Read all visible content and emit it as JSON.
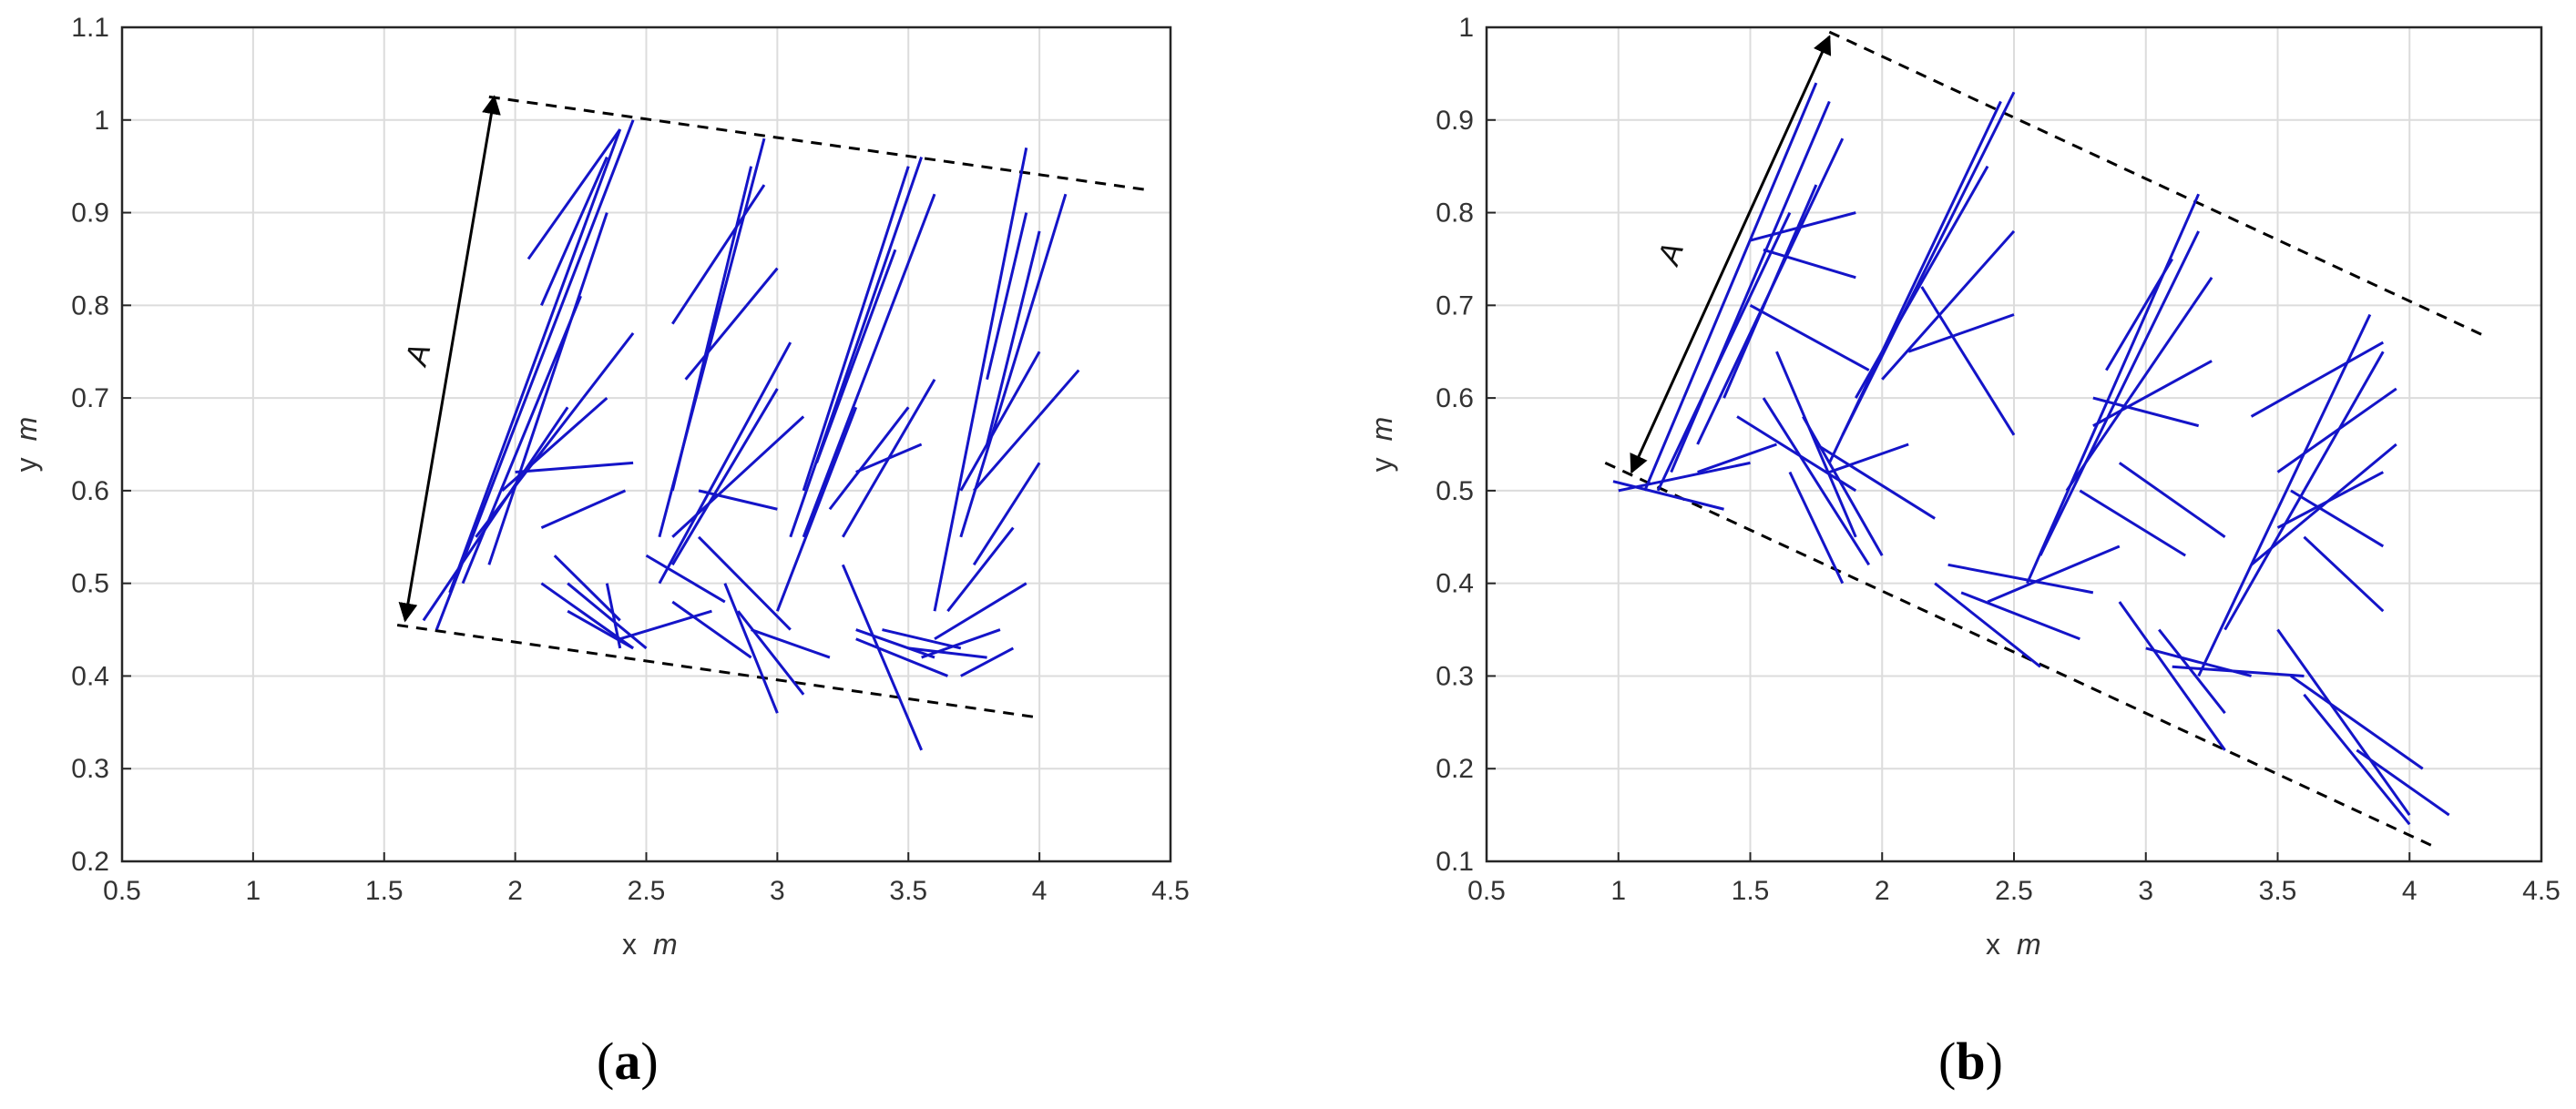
{
  "chart_data": [
    {
      "type": "line",
      "caption_letter": "a",
      "xlabel": "x",
      "xlabel_unit": "m",
      "ylabel": "y",
      "ylabel_unit": "m",
      "xlim": [
        0.5,
        4.5
      ],
      "ylim": [
        0.2,
        1.1
      ],
      "xticks": [
        "0.5",
        "1",
        "1.5",
        "2",
        "2.5",
        "3",
        "3.5",
        "4",
        "4.5"
      ],
      "yticks": [
        "0.2",
        "0.3",
        "0.4",
        "0.5",
        "0.6",
        "0.7",
        "0.8",
        "0.9",
        "1",
        "1.1"
      ],
      "grid": true,
      "annotation": "A",
      "boundary_lines": [
        [
          [
            1.9,
            1.025
          ],
          [
            4.4,
            0.925
          ]
        ],
        [
          [
            1.55,
            0.455
          ],
          [
            4.0,
            0.355
          ]
        ]
      ],
      "arrow": [
        [
          1.58,
          0.46
        ],
        [
          1.92,
          1.025
        ]
      ],
      "segment_color": "#1414c8",
      "segments": [
        [
          [
            1.7,
            0.45
          ],
          [
            2.45,
            1.0
          ]
        ],
        [
          [
            1.75,
            0.49
          ],
          [
            2.4,
            0.99
          ]
        ],
        [
          [
            1.9,
            0.52
          ],
          [
            2.35,
            0.9
          ]
        ],
        [
          [
            1.8,
            0.5
          ],
          [
            2.25,
            0.81
          ]
        ],
        [
          [
            1.85,
            0.55
          ],
          [
            2.45,
            0.77
          ]
        ],
        [
          [
            1.95,
            0.6
          ],
          [
            2.35,
            0.7
          ]
        ],
        [
          [
            2.0,
            0.62
          ],
          [
            2.45,
            0.63
          ]
        ],
        [
          [
            2.1,
            0.56
          ],
          [
            2.42,
            0.6
          ]
        ],
        [
          [
            2.05,
            0.85
          ],
          [
            2.4,
            0.99
          ]
        ],
        [
          [
            2.1,
            0.8
          ],
          [
            2.35,
            0.96
          ]
        ],
        [
          [
            1.65,
            0.46
          ],
          [
            2.2,
            0.69
          ]
        ],
        [
          [
            2.1,
            0.5
          ],
          [
            2.45,
            0.43
          ]
        ],
        [
          [
            2.2,
            0.5
          ],
          [
            2.5,
            0.43
          ]
        ],
        [
          [
            2.2,
            0.47
          ],
          [
            2.45,
            0.43
          ]
        ],
        [
          [
            2.35,
            0.5
          ],
          [
            2.4,
            0.43
          ]
        ],
        [
          [
            2.15,
            0.53
          ],
          [
            2.4,
            0.46
          ]
        ],
        [
          [
            2.55,
            0.55
          ],
          [
            2.95,
            0.98
          ]
        ],
        [
          [
            2.6,
            0.6
          ],
          [
            2.9,
            0.95
          ]
        ],
        [
          [
            2.55,
            0.5
          ],
          [
            3.05,
            0.76
          ]
        ],
        [
          [
            2.6,
            0.52
          ],
          [
            3.0,
            0.71
          ]
        ],
        [
          [
            2.6,
            0.55
          ],
          [
            3.1,
            0.68
          ]
        ],
        [
          [
            2.7,
            0.6
          ],
          [
            3.0,
            0.58
          ]
        ],
        [
          [
            2.6,
            0.78
          ],
          [
            2.95,
            0.93
          ]
        ],
        [
          [
            2.65,
            0.72
          ],
          [
            3.0,
            0.84
          ]
        ],
        [
          [
            2.7,
            0.55
          ],
          [
            3.05,
            0.45
          ]
        ],
        [
          [
            2.6,
            0.48
          ],
          [
            2.9,
            0.42
          ]
        ],
        [
          [
            2.4,
            0.44
          ],
          [
            2.75,
            0.47
          ]
        ],
        [
          [
            2.5,
            0.53
          ],
          [
            2.8,
            0.48
          ]
        ],
        [
          [
            2.8,
            0.5
          ],
          [
            3.0,
            0.36
          ]
        ],
        [
          [
            2.85,
            0.47
          ],
          [
            3.1,
            0.38
          ]
        ],
        [
          [
            2.9,
            0.45
          ],
          [
            3.2,
            0.42
          ]
        ],
        [
          [
            3.05,
            0.55
          ],
          [
            3.55,
            0.96
          ]
        ],
        [
          [
            3.1,
            0.6
          ],
          [
            3.5,
            0.95
          ]
        ],
        [
          [
            3.1,
            0.55
          ],
          [
            3.6,
            0.92
          ]
        ],
        [
          [
            3.15,
            0.63
          ],
          [
            3.45,
            0.86
          ]
        ],
        [
          [
            3.2,
            0.58
          ],
          [
            3.5,
            0.69
          ]
        ],
        [
          [
            3.25,
            0.55
          ],
          [
            3.6,
            0.72
          ]
        ],
        [
          [
            3.3,
            0.62
          ],
          [
            3.55,
            0.65
          ]
        ],
        [
          [
            3.0,
            0.47
          ],
          [
            3.3,
            0.69
          ]
        ],
        [
          [
            3.3,
            0.45
          ],
          [
            3.6,
            0.42
          ]
        ],
        [
          [
            3.25,
            0.52
          ],
          [
            3.55,
            0.32
          ]
        ],
        [
          [
            3.4,
            0.45
          ],
          [
            3.7,
            0.43
          ]
        ],
        [
          [
            3.3,
            0.44
          ],
          [
            3.65,
            0.4
          ]
        ],
        [
          [
            3.5,
            0.43
          ],
          [
            3.8,
            0.42
          ]
        ],
        [
          [
            3.6,
            0.47
          ],
          [
            3.95,
            0.97
          ]
        ],
        [
          [
            3.7,
            0.55
          ],
          [
            4.1,
            0.92
          ]
        ],
        [
          [
            3.75,
            0.6
          ],
          [
            4.15,
            0.73
          ]
        ],
        [
          [
            3.7,
            0.6
          ],
          [
            4.0,
            0.75
          ]
        ],
        [
          [
            3.8,
            0.65
          ],
          [
            4.0,
            0.88
          ]
        ],
        [
          [
            3.6,
            0.44
          ],
          [
            3.95,
            0.5
          ]
        ],
        [
          [
            3.7,
            0.4
          ],
          [
            3.9,
            0.43
          ]
        ],
        [
          [
            3.65,
            0.47
          ],
          [
            3.9,
            0.56
          ]
        ],
        [
          [
            3.75,
            0.52
          ],
          [
            4.0,
            0.63
          ]
        ],
        [
          [
            3.55,
            0.42
          ],
          [
            3.85,
            0.45
          ]
        ],
        [
          [
            3.8,
            0.72
          ],
          [
            3.95,
            0.9
          ]
        ]
      ]
    },
    {
      "type": "line",
      "caption_letter": "b",
      "xlabel": "x",
      "xlabel_unit": "m",
      "ylabel": "y",
      "ylabel_unit": "m",
      "xlim": [
        0.5,
        4.5
      ],
      "ylim": [
        0.1,
        1.0
      ],
      "xticks": [
        "0.5",
        "1",
        "1.5",
        "2",
        "2.5",
        "3",
        "3.5",
        "4",
        "4.5"
      ],
      "yticks": [
        "0.1",
        "0.2",
        "0.3",
        "0.4",
        "0.5",
        "0.6",
        "0.7",
        "0.8",
        "0.9",
        "1"
      ],
      "grid": true,
      "annotation": "A",
      "boundary_lines": [
        [
          [
            1.8,
            0.995
          ],
          [
            4.3,
            0.665
          ]
        ],
        [
          [
            0.95,
            0.53
          ],
          [
            4.1,
            0.115
          ]
        ]
      ],
      "arrow": [
        [
          1.05,
          0.52
        ],
        [
          1.8,
          0.99
        ]
      ],
      "segment_color": "#1414c8",
      "segments": [
        [
          [
            1.1,
            0.5
          ],
          [
            1.75,
            0.94
          ]
        ],
        [
          [
            1.2,
            0.52
          ],
          [
            1.8,
            0.92
          ]
        ],
        [
          [
            1.3,
            0.55
          ],
          [
            1.85,
            0.88
          ]
        ],
        [
          [
            1.15,
            0.5
          ],
          [
            1.65,
            0.8
          ]
        ],
        [
          [
            1.4,
            0.6
          ],
          [
            1.75,
            0.83
          ]
        ],
        [
          [
            1.5,
            0.77
          ],
          [
            1.9,
            0.8
          ]
        ],
        [
          [
            1.55,
            0.76
          ],
          [
            1.9,
            0.73
          ]
        ],
        [
          [
            1.5,
            0.7
          ],
          [
            1.95,
            0.63
          ]
        ],
        [
          [
            1.6,
            0.65
          ],
          [
            1.9,
            0.45
          ]
        ],
        [
          [
            1.55,
            0.6
          ],
          [
            1.95,
            0.42
          ]
        ],
        [
          [
            1.45,
            0.58
          ],
          [
            1.9,
            0.5
          ]
        ],
        [
          [
            0.98,
            0.51
          ],
          [
            1.4,
            0.48
          ]
        ],
        [
          [
            1.0,
            0.5
          ],
          [
            1.5,
            0.53
          ]
        ],
        [
          [
            1.3,
            0.52
          ],
          [
            1.6,
            0.55
          ]
        ],
        [
          [
            1.8,
            0.53
          ],
          [
            2.45,
            0.92
          ]
        ],
        [
          [
            1.85,
            0.56
          ],
          [
            2.5,
            0.93
          ]
        ],
        [
          [
            1.9,
            0.6
          ],
          [
            2.4,
            0.85
          ]
        ],
        [
          [
            2.0,
            0.62
          ],
          [
            2.5,
            0.78
          ]
        ],
        [
          [
            2.1,
            0.65
          ],
          [
            2.5,
            0.69
          ]
        ],
        [
          [
            2.15,
            0.72
          ],
          [
            2.5,
            0.56
          ]
        ],
        [
          [
            1.8,
            0.52
          ],
          [
            2.1,
            0.55
          ]
        ],
        [
          [
            1.75,
            0.55
          ],
          [
            2.2,
            0.47
          ]
        ],
        [
          [
            1.7,
            0.58
          ],
          [
            2.0,
            0.43
          ]
        ],
        [
          [
            1.65,
            0.52
          ],
          [
            1.85,
            0.4
          ]
        ],
        [
          [
            2.2,
            0.4
          ],
          [
            2.6,
            0.31
          ]
        ],
        [
          [
            2.3,
            0.39
          ],
          [
            2.75,
            0.34
          ]
        ],
        [
          [
            2.25,
            0.42
          ],
          [
            2.8,
            0.39
          ]
        ],
        [
          [
            2.4,
            0.38
          ],
          [
            2.9,
            0.44
          ]
        ],
        [
          [
            2.55,
            0.4
          ],
          [
            3.2,
            0.82
          ]
        ],
        [
          [
            2.6,
            0.43
          ],
          [
            3.2,
            0.78
          ]
        ],
        [
          [
            2.7,
            0.5
          ],
          [
            3.25,
            0.73
          ]
        ],
        [
          [
            2.8,
            0.57
          ],
          [
            3.25,
            0.64
          ]
        ],
        [
          [
            2.8,
            0.6
          ],
          [
            3.2,
            0.57
          ]
        ],
        [
          [
            2.9,
            0.53
          ],
          [
            3.3,
            0.45
          ]
        ],
        [
          [
            2.75,
            0.5
          ],
          [
            3.15,
            0.43
          ]
        ],
        [
          [
            2.85,
            0.63
          ],
          [
            3.1,
            0.75
          ]
        ],
        [
          [
            2.9,
            0.38
          ],
          [
            3.3,
            0.22
          ]
        ],
        [
          [
            3.0,
            0.33
          ],
          [
            3.4,
            0.3
          ]
        ],
        [
          [
            3.1,
            0.31
          ],
          [
            3.6,
            0.3
          ]
        ],
        [
          [
            3.05,
            0.35
          ],
          [
            3.3,
            0.26
          ]
        ],
        [
          [
            3.2,
            0.3
          ],
          [
            3.85,
            0.69
          ]
        ],
        [
          [
            3.3,
            0.35
          ],
          [
            3.9,
            0.65
          ]
        ],
        [
          [
            3.4,
            0.42
          ],
          [
            3.95,
            0.55
          ]
        ],
        [
          [
            3.5,
            0.46
          ],
          [
            3.9,
            0.52
          ]
        ],
        [
          [
            3.55,
            0.5
          ],
          [
            3.9,
            0.44
          ]
        ],
        [
          [
            3.6,
            0.45
          ],
          [
            3.9,
            0.37
          ]
        ],
        [
          [
            3.5,
            0.52
          ],
          [
            3.95,
            0.61
          ]
        ],
        [
          [
            3.5,
            0.35
          ],
          [
            4.0,
            0.15
          ]
        ],
        [
          [
            3.6,
            0.28
          ],
          [
            4.0,
            0.14
          ]
        ],
        [
          [
            3.8,
            0.22
          ],
          [
            4.15,
            0.15
          ]
        ],
        [
          [
            3.55,
            0.3
          ],
          [
            4.05,
            0.2
          ]
        ],
        [
          [
            3.4,
            0.58
          ],
          [
            3.9,
            0.66
          ]
        ]
      ]
    }
  ]
}
